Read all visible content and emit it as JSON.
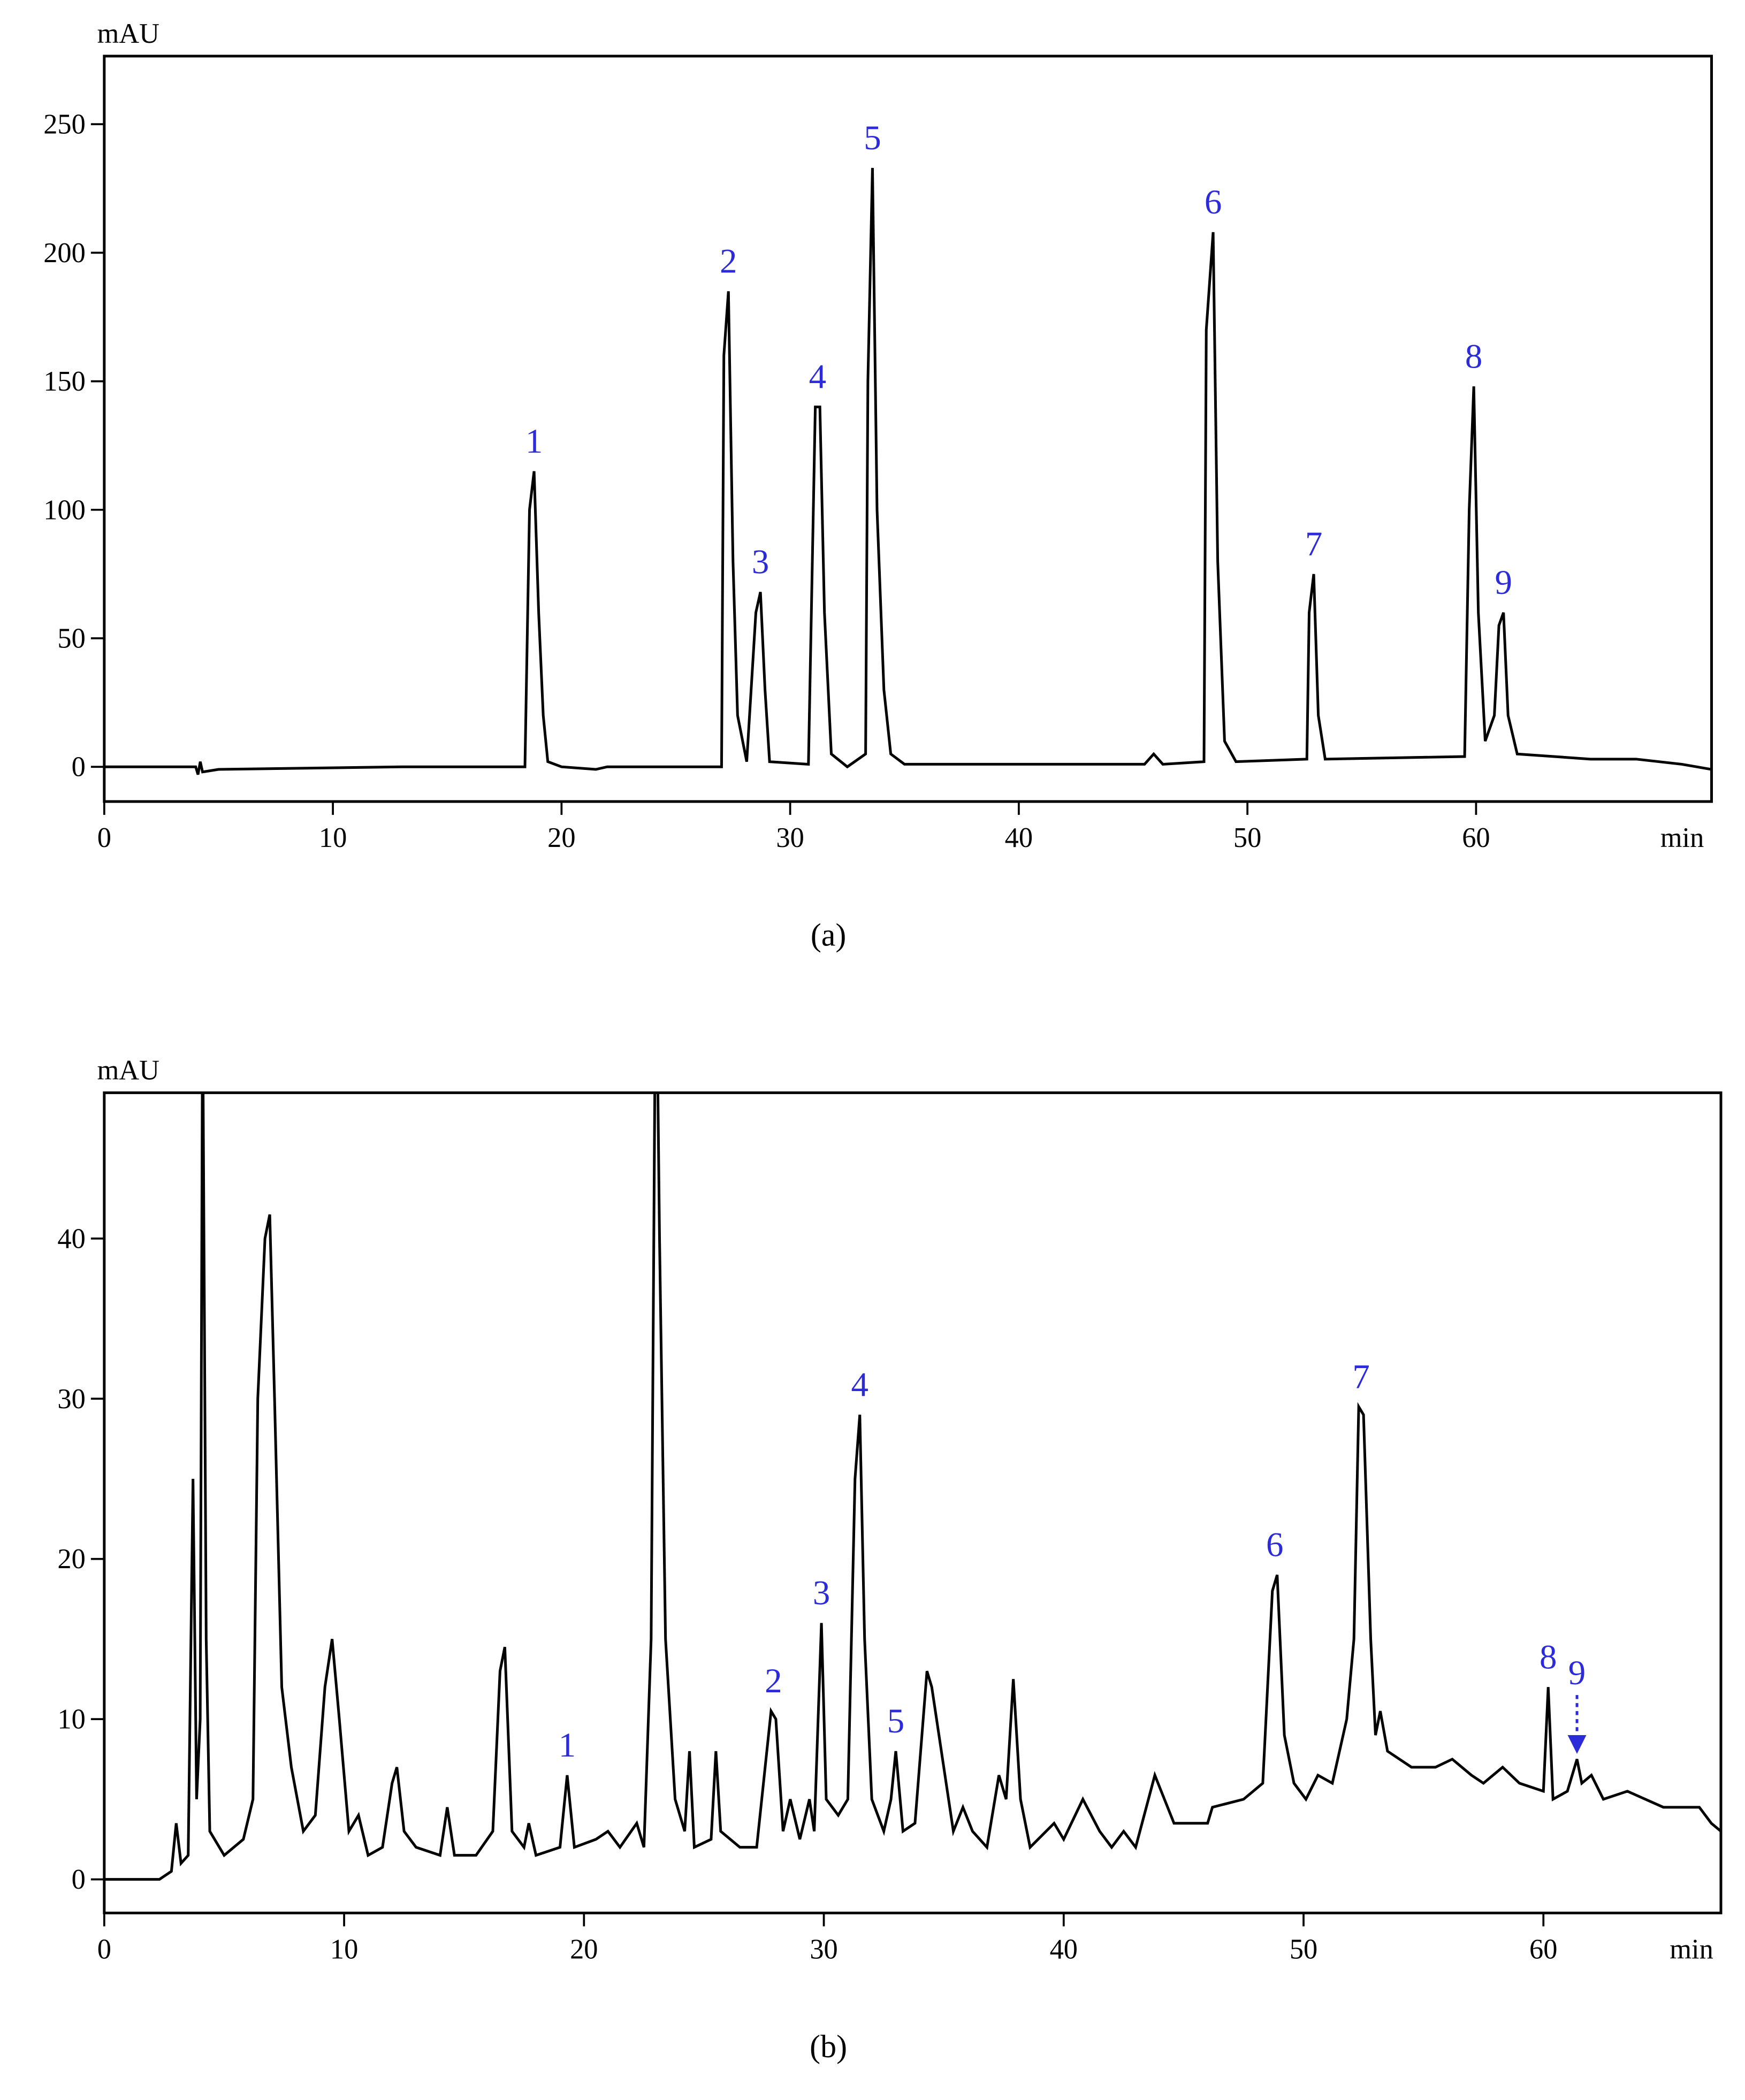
{
  "chart_data": [
    {
      "type": "line",
      "caption": "(a)",
      "ylabel": "mAU",
      "xlabel": "min",
      "color": "#000000",
      "annotation_color": "#2b2bd9",
      "xlim": [
        0,
        70.3
      ],
      "ylim": [
        -13.5,
        276.5
      ],
      "xticks": [
        0,
        10,
        20,
        30,
        40,
        50,
        60
      ],
      "yticks": [
        0,
        50,
        100,
        150,
        200,
        250
      ],
      "x": [
        0,
        4,
        4.1,
        4.2,
        4.3,
        5,
        13,
        18.4,
        18.6,
        18.8,
        19.0,
        19.2,
        19.4,
        20,
        21.5,
        22,
        27.0,
        27.1,
        27.3,
        27.5,
        27.7,
        28.1,
        28.5,
        28.7,
        28.9,
        29.1,
        30.8,
        31.1,
        31.3,
        31.5,
        31.8,
        32.5,
        33.3,
        33.4,
        33.6,
        33.8,
        34.1,
        34.4,
        35,
        45.5,
        45.9,
        46.3,
        48.1,
        48.2,
        48.5,
        48.7,
        49,
        49.5,
        52.6,
        52.7,
        52.9,
        53.1,
        53.4,
        59.5,
        59.7,
        59.9,
        60.1,
        60.4,
        60.8,
        61.0,
        61.2,
        61.4,
        61.8,
        65,
        67,
        69,
        70.3
      ],
      "values": [
        0,
        0,
        -3,
        2,
        -2,
        -1,
        0,
        0,
        100,
        115,
        60,
        20,
        2,
        0,
        -1,
        0,
        0,
        160,
        185,
        80,
        20,
        2,
        60,
        68,
        30,
        2,
        1,
        140,
        140,
        60,
        5,
        0,
        5,
        150,
        233,
        100,
        30,
        5,
        1,
        1,
        5,
        1,
        2,
        170,
        208,
        80,
        10,
        2,
        3,
        60,
        75,
        20,
        3,
        4,
        100,
        148,
        60,
        10,
        20,
        55,
        60,
        20,
        5,
        3,
        3,
        1,
        -1
      ],
      "annotations": [
        {
          "text": "1",
          "x": 18.8
        },
        {
          "text": "2",
          "x": 27.3
        },
        {
          "text": "3",
          "x": 28.7
        },
        {
          "text": "4",
          "x": 31.2
        },
        {
          "text": "5",
          "x": 33.6
        },
        {
          "text": "6",
          "x": 48.5
        },
        {
          "text": "7",
          "x": 52.9
        },
        {
          "text": "8",
          "x": 59.9
        },
        {
          "text": "9",
          "x": 61.2
        }
      ]
    },
    {
      "type": "line",
      "caption": "(b)",
      "ylabel": "mAU",
      "xlabel": "min",
      "color": "#000000",
      "annotation_color": "#2b2bd9",
      "xlim": [
        0,
        67.4
      ],
      "ylim": [
        -2.1,
        49.1
      ],
      "xticks": [
        0,
        10,
        20,
        30,
        40,
        50,
        60
      ],
      "yticks": [
        0,
        10,
        20,
        30,
        40
      ],
      "x": [
        0,
        2.3,
        2.8,
        3.0,
        3.2,
        3.5,
        3.7,
        3.85,
        4.0,
        4.1,
        4.25,
        4.4,
        5,
        5.8,
        6.2,
        6.4,
        6.7,
        6.9,
        7.1,
        7.4,
        7.8,
        8.3,
        8.8,
        9.2,
        9.5,
        9.8,
        10.2,
        10.6,
        11,
        11.6,
        12.0,
        12.2,
        12.5,
        13,
        14,
        14.3,
        14.6,
        15.5,
        16.2,
        16.5,
        16.7,
        17,
        17.5,
        17.7,
        18,
        19,
        19.3,
        19.6,
        20.5,
        21,
        21.5,
        22.2,
        22.5,
        22.8,
        23.0,
        23.15,
        23.4,
        23.8,
        24.2,
        24.4,
        24.6,
        25.3,
        25.5,
        25.7,
        26.5,
        27.2,
        27.8,
        28.0,
        28.3,
        28.6,
        29,
        29.4,
        29.6,
        29.9,
        30.1,
        30.6,
        31.0,
        31.3,
        31.5,
        31.7,
        32.0,
        32.5,
        32.8,
        33.0,
        33.3,
        33.8,
        34.3,
        34.5,
        34.8,
        35,
        35.4,
        35.8,
        36.2,
        36.8,
        37.3,
        37.6,
        37.9,
        38.2,
        38.6,
        39.6,
        40,
        40.8,
        41.5,
        42.0,
        42.5,
        43,
        43.8,
        44.2,
        44.6,
        46,
        46.2,
        47.5,
        48.3,
        48.7,
        48.9,
        49.2,
        49.6,
        50.1,
        50.6,
        51.2,
        51.8,
        52.1,
        52.3,
        52.5,
        52.8,
        53.0,
        53.2,
        53.5,
        54.5,
        55.5,
        56.2,
        57,
        57.5,
        58.3,
        59,
        60.0,
        60.2,
        60.4,
        61,
        61.4,
        61.6,
        62,
        62.5,
        63.5,
        65,
        66.5,
        67,
        67.4
      ],
      "values": [
        0,
        0,
        0.5,
        3.5,
        1,
        1.5,
        25,
        5,
        10,
        55,
        15,
        3,
        1.5,
        2.5,
        5,
        30,
        40,
        41.5,
        30,
        12,
        7,
        3,
        4,
        12,
        15,
        10,
        3,
        4,
        1.5,
        2,
        6,
        7,
        3,
        2,
        1.5,
        4.5,
        1.5,
        1.5,
        3,
        13,
        14.5,
        3,
        2,
        3.5,
        1.5,
        2,
        6.5,
        2,
        2.5,
        3,
        2,
        3.5,
        2,
        15,
        60,
        40,
        15,
        5,
        3,
        8,
        2,
        2.5,
        8,
        3,
        2,
        2,
        10.5,
        10,
        3,
        5,
        2.5,
        5,
        3,
        16,
        5,
        4,
        5,
        25,
        29,
        15,
        5,
        3,
        5,
        8,
        3,
        3.5,
        13,
        12,
        9,
        7,
        3,
        4.5,
        3,
        2,
        6.5,
        5,
        12.5,
        5,
        2,
        3.5,
        2.5,
        5,
        3,
        2,
        3,
        2,
        6.5,
        5,
        3.5,
        3.5,
        4.5,
        5,
        6,
        18,
        19,
        9,
        6,
        5,
        6.5,
        6,
        10,
        15,
        29.5,
        29,
        15,
        9,
        10.5,
        8,
        7,
        7,
        7.5,
        6.5,
        6,
        7,
        6,
        5.5,
        12,
        5,
        5.5,
        7.5,
        6,
        6.5,
        5,
        5.5,
        4.5,
        4.5,
        3.5,
        3
      ],
      "annotations": [
        {
          "text": "1",
          "x": 19.3
        },
        {
          "text": "2",
          "x": 27.9
        },
        {
          "text": "3",
          "x": 29.9
        },
        {
          "text": "4",
          "x": 31.5
        },
        {
          "text": "5",
          "x": 33.0
        },
        {
          "text": "6",
          "x": 48.8
        },
        {
          "text": "7",
          "x": 52.4
        },
        {
          "text": "8",
          "x": 60.2
        },
        {
          "text": "9",
          "x": 61.4,
          "arrow": true
        }
      ]
    }
  ]
}
